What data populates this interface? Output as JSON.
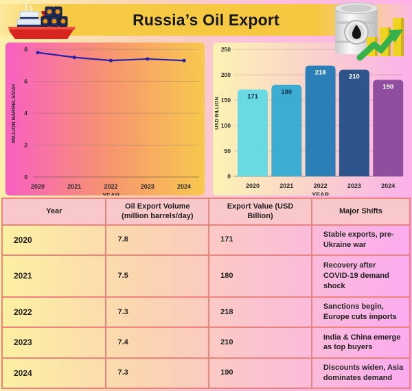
{
  "header": {
    "title": "Russia’s Oil Export",
    "left_icon": "cargo-ship-with-oil-barrels-icon",
    "right_icon": "oil-drum-with-rising-chart-icon"
  },
  "chart_data": [
    {
      "type": "line",
      "x": [
        "2020",
        "2021",
        "2022",
        "2023",
        "2024"
      ],
      "values": [
        7.8,
        7.5,
        7.3,
        7.4,
        7.3
      ],
      "xlabel": "YEAR",
      "ylabel": "MILLION BARRELS/DAY",
      "ylim": [
        0,
        8
      ],
      "yticks": [
        0,
        2,
        4,
        6,
        8
      ],
      "grid": true,
      "legend": false,
      "line_color": "#2b21a6",
      "tick_color": "#2b2b2b"
    },
    {
      "type": "bar",
      "categories": [
        "2020",
        "2021",
        "2022",
        "2023",
        "2024"
      ],
      "values": [
        171,
        180,
        218,
        210,
        190
      ],
      "xlabel": "YEAR",
      "ylabel": "USD BILLION",
      "ylim": [
        0,
        250
      ],
      "yticks": [
        0,
        50,
        100,
        150,
        200,
        250
      ],
      "grid": true,
      "legend": false,
      "bar_colors": [
        "#68dbe2",
        "#3badd3",
        "#2b7fb6",
        "#2d548b",
        "#904e9f"
      ],
      "value_label_colors": [
        "#17334f",
        "#17334f",
        "#ffffff",
        "#ffffff",
        "#ffffff"
      ],
      "tick_color": "#2b2b2b"
    }
  ],
  "table": {
    "headers": [
      "Year",
      "Oil Export Volume (million barrels/day)",
      "Export Value (USD Billion)",
      "Major Shifts"
    ],
    "rows": [
      {
        "year": "2020",
        "volume": "7.8",
        "value": "171",
        "shift": "Stable exports, pre-Ukraine war"
      },
      {
        "year": "2021",
        "volume": "7.5",
        "value": "180",
        "shift": "Recovery after COVID-19 demand shock"
      },
      {
        "year": "2022",
        "volume": "7.3",
        "value": "218",
        "shift": "Sanctions begin, Europe cuts imports"
      },
      {
        "year": "2023",
        "volume": "7.4",
        "value": "210",
        "shift": "India & China emerge as top buyers"
      },
      {
        "year": "2024",
        "volume": "7.3",
        "value": "190",
        "shift": "Discounts widen, Asia dominates demand"
      }
    ]
  },
  "colors": {
    "banner_gold": "#f5c83e",
    "line_panel_left": "#f85fc2",
    "line_panel_right": "#f8c94f",
    "bar_panel_left": "#fdf3b4",
    "bar_panel_right": "#fab2e9",
    "table_header_bg": "#f9c8cb",
    "table_border": "#f0837e",
    "text_dark": "#1f1f1f"
  }
}
